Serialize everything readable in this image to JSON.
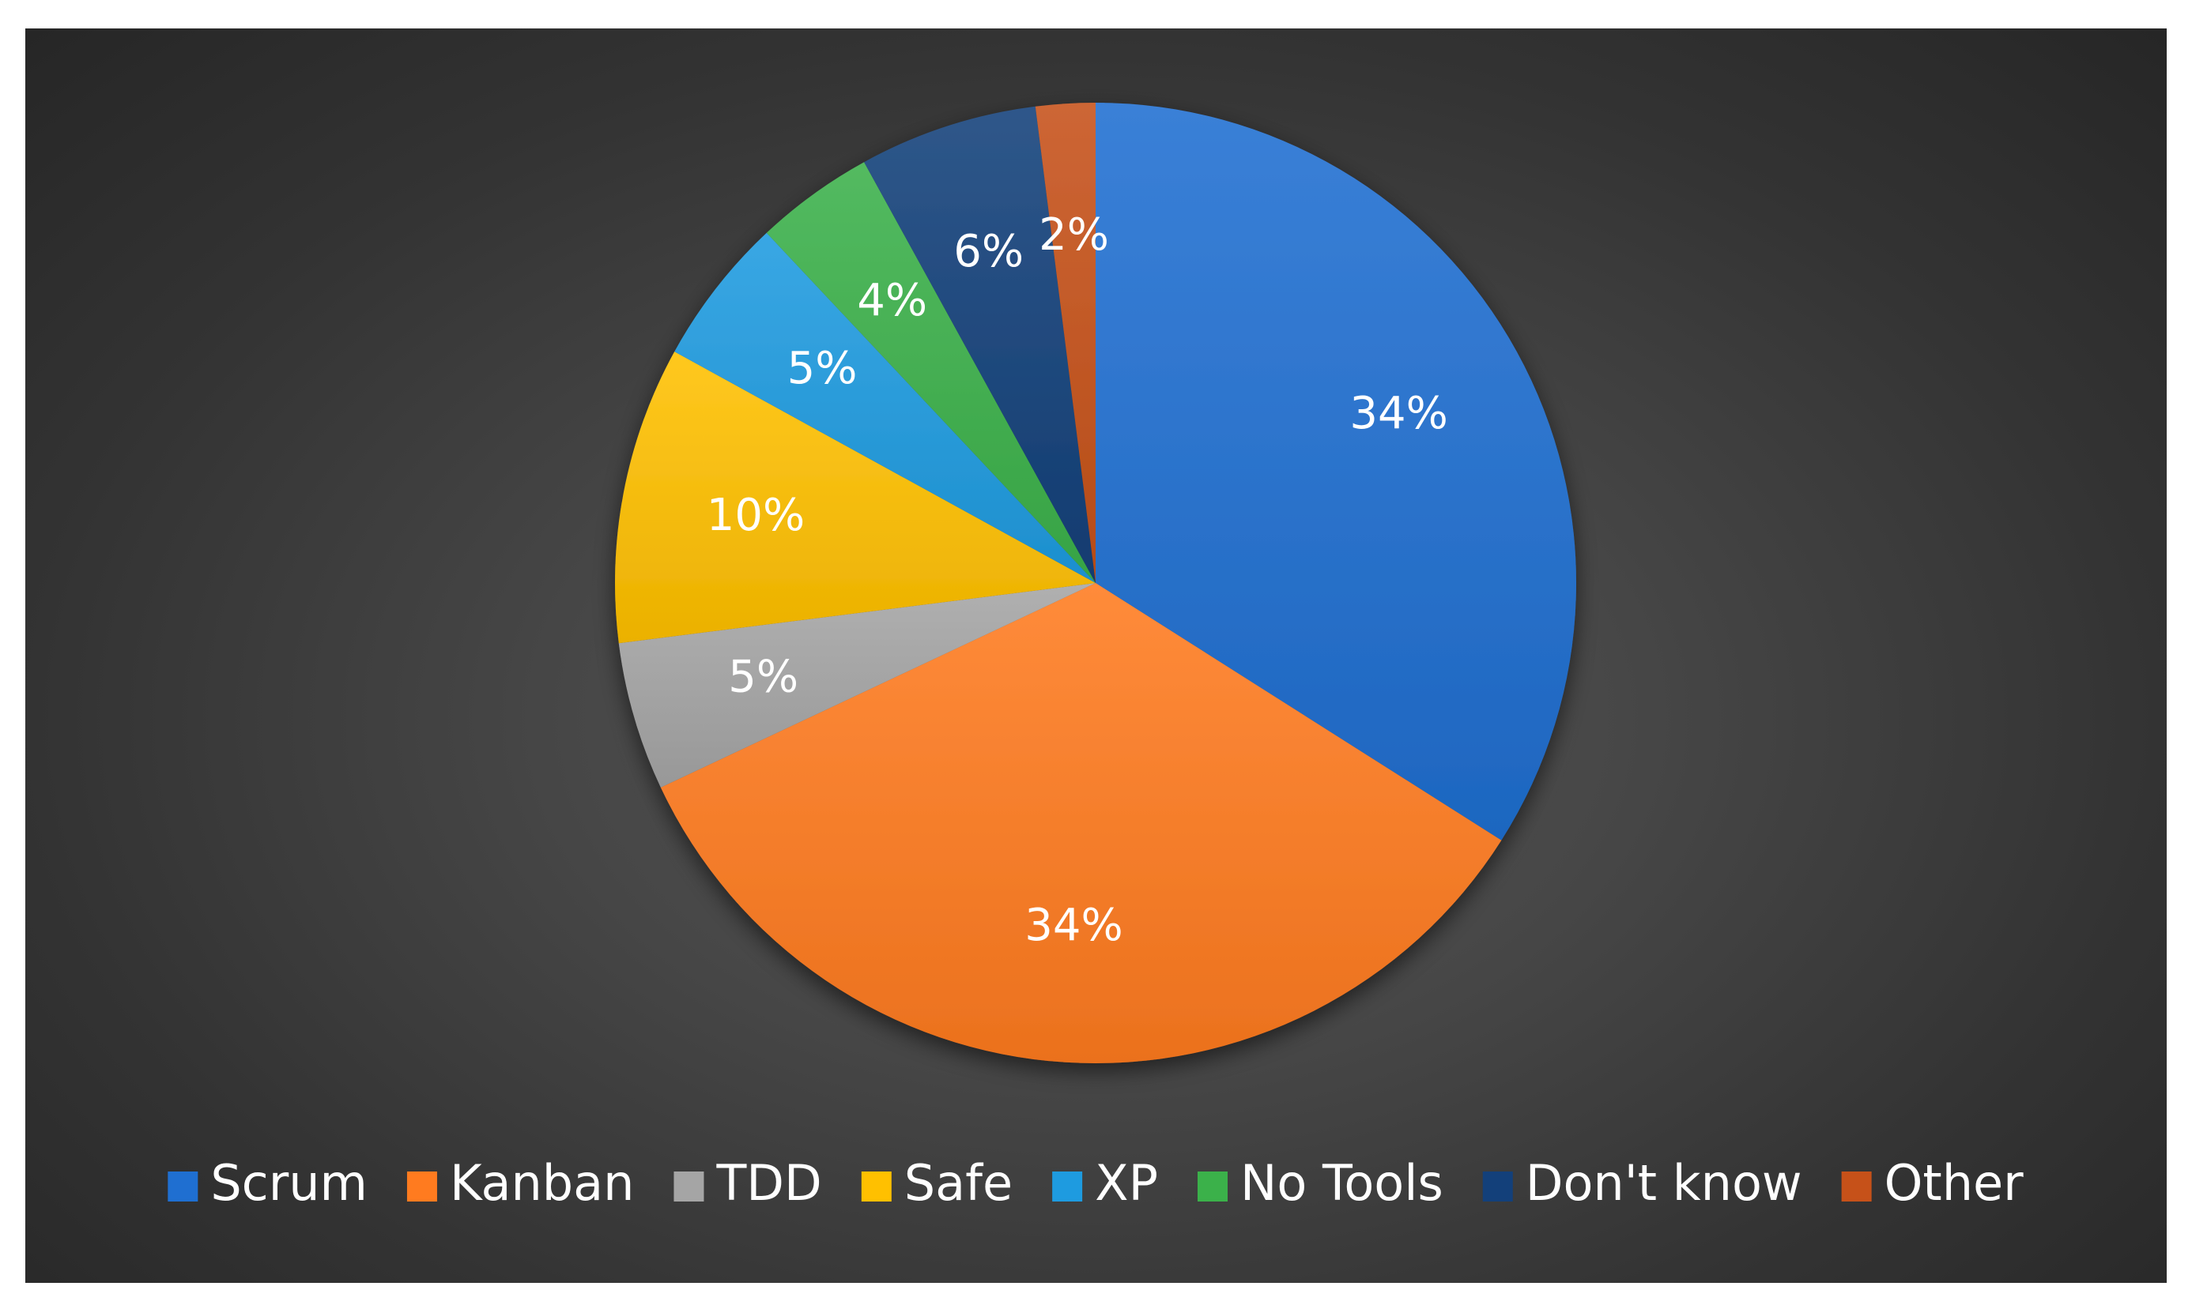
{
  "chart_data": {
    "type": "pie",
    "title": "",
    "categories": [
      "Scrum",
      "Kanban",
      "TDD",
      "Safe",
      "XP",
      "No Tools",
      "Don't know",
      "Other"
    ],
    "values": [
      34,
      34,
      5,
      10,
      5,
      4,
      6,
      2
    ],
    "labels": [
      "34%",
      "34%",
      "5%",
      "10%",
      "5%",
      "4%",
      "6%",
      "2%"
    ],
    "colors": [
      "#1f6fd1",
      "#ff7b1f",
      "#a5a5a5",
      "#ffc000",
      "#1e9be0",
      "#3bb14a",
      "#13407a",
      "#c65119"
    ],
    "legend_position": "bottom"
  }
}
